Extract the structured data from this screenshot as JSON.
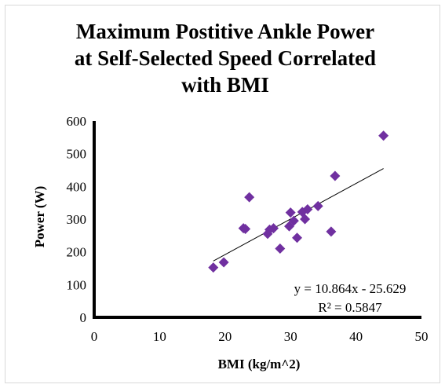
{
  "chart_data": {
    "type": "scatter",
    "title": [
      "Maximum Postitive Ankle Power",
      "at Self-Selected Speed Correlated",
      "with BMI"
    ],
    "xlabel": "BMI (kg/m^2)",
    "ylabel": "Power (W)",
    "xlim": [
      0,
      50
    ],
    "ylim": [
      0,
      600
    ],
    "xticks": [
      0,
      10,
      20,
      30,
      40,
      50
    ],
    "yticks": [
      0,
      100,
      200,
      300,
      400,
      500,
      600
    ],
    "grid": false,
    "legend": "none",
    "marker_color": "#7030a0",
    "marker": "diamond",
    "points": [
      {
        "x": 18.2,
        "y": 152
      },
      {
        "x": 19.8,
        "y": 168
      },
      {
        "x": 22.8,
        "y": 272
      },
      {
        "x": 23.1,
        "y": 270
      },
      {
        "x": 23.7,
        "y": 367
      },
      {
        "x": 26.5,
        "y": 255
      },
      {
        "x": 26.8,
        "y": 268
      },
      {
        "x": 27.4,
        "y": 272
      },
      {
        "x": 28.4,
        "y": 210
      },
      {
        "x": 29.8,
        "y": 278
      },
      {
        "x": 30.0,
        "y": 320
      },
      {
        "x": 30.5,
        "y": 295
      },
      {
        "x": 31.0,
        "y": 243
      },
      {
        "x": 31.8,
        "y": 322
      },
      {
        "x": 32.2,
        "y": 300
      },
      {
        "x": 32.6,
        "y": 330
      },
      {
        "x": 34.2,
        "y": 340
      },
      {
        "x": 36.2,
        "y": 262
      },
      {
        "x": 36.8,
        "y": 432
      },
      {
        "x": 44.2,
        "y": 555
      }
    ],
    "trendline": {
      "slope": 10.864,
      "intercept": -25.629,
      "x_range": [
        18.2,
        44.2
      ],
      "equation_label": "y = 10.864x - 25.629",
      "r2_label": "R² = 0.5847"
    }
  }
}
